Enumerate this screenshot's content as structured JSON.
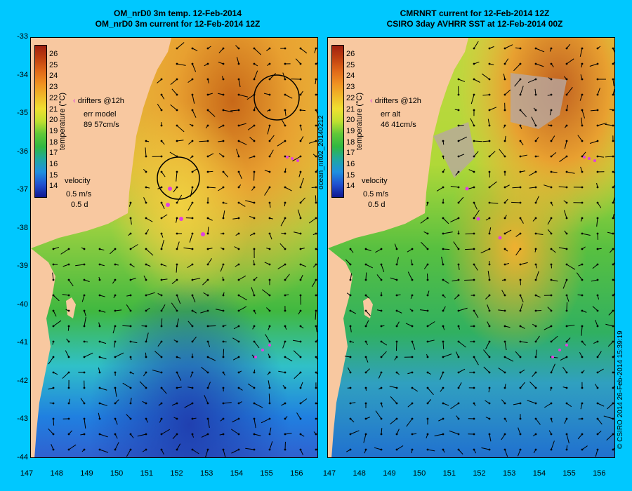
{
  "left_panel": {
    "title_line1": "OM_nrD0 3m temp. 12-Feb-2014",
    "title_line2": "OM_nrD0 3m current for 12-Feb-2014 12Z",
    "drifters_label": "drifters @12h",
    "err_label": "err model",
    "err_value": "89 57cm/s",
    "velocity_label": "velocity",
    "velocity_scale": "0.5 m/s",
    "velocity_days": "0.5 d"
  },
  "right_panel": {
    "title_line1": "CMRNRT current for 12-Feb-2014 12Z",
    "title_line2": "CSIRO 3day AVHRR SST at 12-Feb-2014 00Z",
    "drifters_label": "drifters @12h",
    "err_label": "err alt",
    "err_value": "46 41cm/s",
    "velocity_label": "velocity",
    "velocity_scale": "0.5 m/s",
    "velocity_days": "0.5 d",
    "side_label": "ocean_nrt02_20140212"
  },
  "colorbar": {
    "label": "temperature (°C)",
    "ticks": [
      "26",
      "25",
      "24",
      "23",
      "22",
      "21",
      "20",
      "19",
      "18",
      "17",
      "16",
      "15",
      "14"
    ]
  },
  "axes": {
    "lat_ticks": [
      "-33",
      "-34",
      "-35",
      "-36",
      "-37",
      "-38",
      "-39",
      "-40",
      "-41",
      "-42",
      "-43",
      "-44"
    ],
    "lon_ticks": [
      "147",
      "148",
      "149",
      "150",
      "151",
      "152",
      "153",
      "154",
      "155",
      "156"
    ]
  },
  "credit": "© CSIRO 2014   26-Feb-2014 15:39:19",
  "colors": {
    "background": "#00c8ff",
    "land": "#f8c8a0",
    "drifter": "#e040e0"
  }
}
